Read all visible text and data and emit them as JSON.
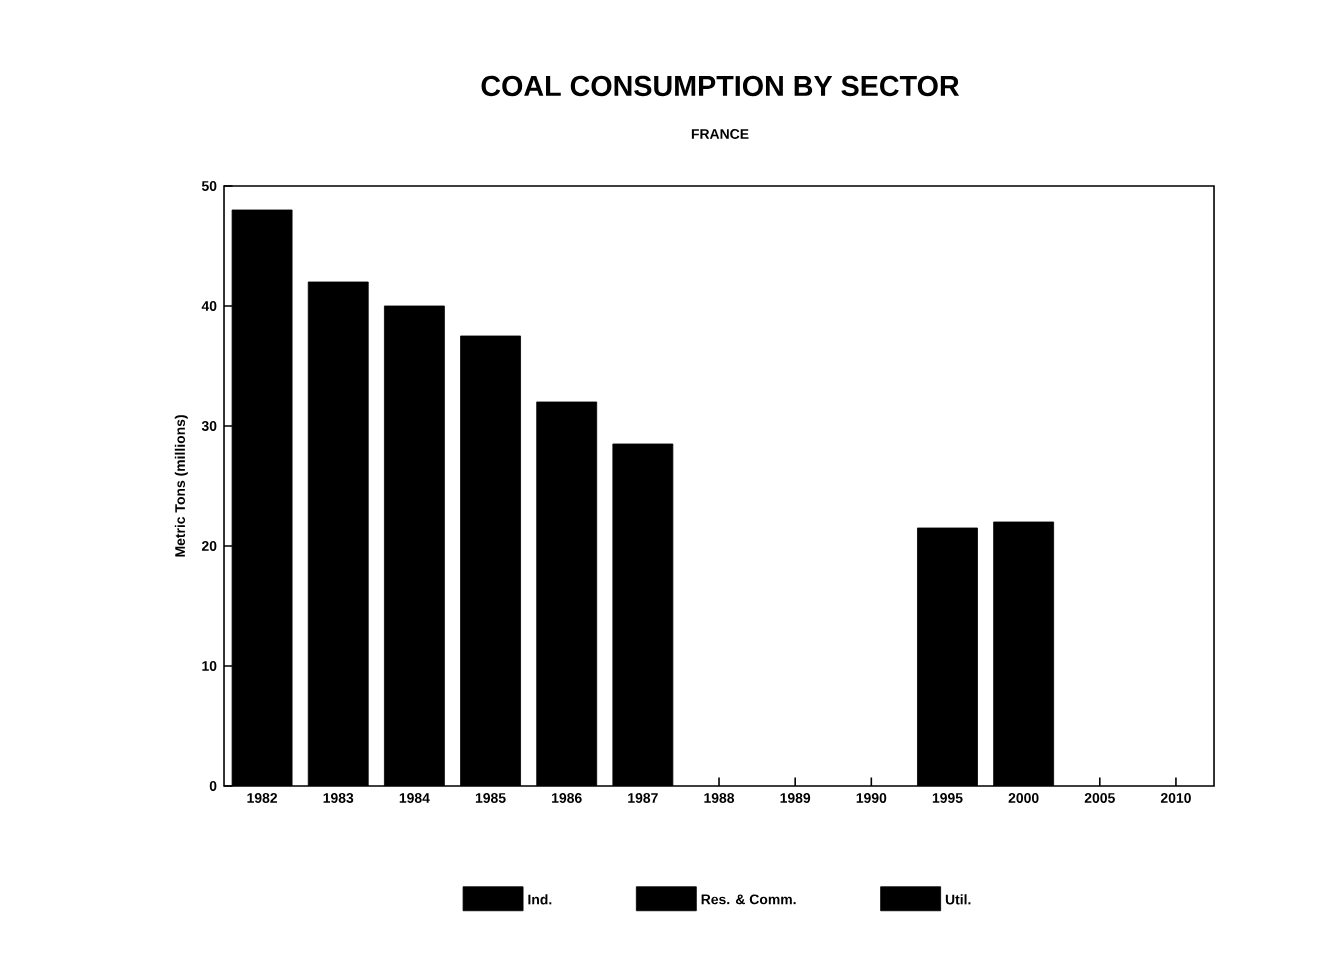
{
  "chart_data": {
    "type": "bar",
    "title": "COAL CONSUMPTION BY SECTOR",
    "subtitle": "FRANCE",
    "ylabel": "Metric Tons (millions)",
    "categories": [
      "1982",
      "1983",
      "1984",
      "1985",
      "1986",
      "1987",
      "1988",
      "1989",
      "1990",
      "1995",
      "2000",
      "2005",
      "2010"
    ],
    "series": [
      {
        "name": "Ind.",
        "color": "#000000",
        "values": [
          48,
          42,
          40,
          37.5,
          32,
          28.5,
          null,
          null,
          null,
          21.5,
          22,
          null,
          null
        ]
      },
      {
        "name": "Res. & Comm.",
        "color": "#000000",
        "values": [
          null,
          null,
          null,
          null,
          null,
          null,
          null,
          null,
          null,
          null,
          null,
          null,
          null
        ]
      },
      {
        "name": "Util.",
        "color": "#000000",
        "values": [
          null,
          null,
          null,
          null,
          null,
          null,
          null,
          null,
          null,
          null,
          null,
          null,
          null
        ]
      }
    ],
    "stacked": true,
    "ylim": [
      0,
      50
    ],
    "yticks": [
      0,
      10,
      20,
      30,
      40,
      50
    ],
    "legend": "bottom"
  }
}
